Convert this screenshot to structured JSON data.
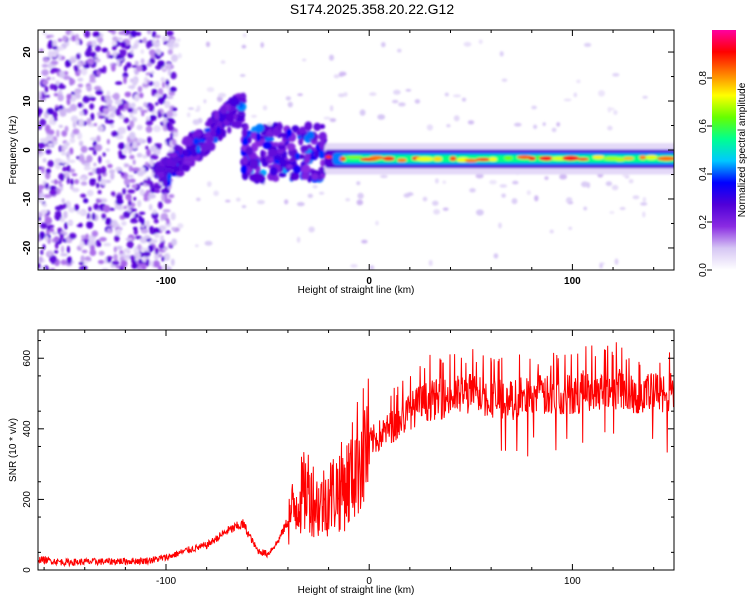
{
  "title": "S174.2025.358.20.22.G12",
  "chart_data": [
    {
      "type": "heatmap",
      "name": "spectrogram",
      "xlabel": "Height of straight line (km)",
      "ylabel": "Frequency (Hz)",
      "xlim": [
        -163,
        150
      ],
      "ylim": [
        -24.5,
        24.5
      ],
      "x_ticks": [
        -100,
        0,
        100
      ],
      "y_ticks": [
        -20,
        -10,
        0,
        10,
        20
      ],
      "x_tick_labels": [
        "-100",
        "0",
        "100"
      ],
      "y_tick_labels": [
        "-20",
        "-10",
        "0",
        "10",
        "20"
      ],
      "colorbar": {
        "label": "Normalized spectral amplitude",
        "range": [
          0,
          1
        ],
        "ticks": [
          0.0,
          0.2,
          0.4,
          0.6,
          0.8
        ],
        "tick_labels": [
          "0.0",
          "0.2",
          "0.4",
          "0.6",
          "0.8"
        ],
        "colors": [
          "#ffffff",
          "#d6c6f4",
          "#8a2be2",
          "#5000d8",
          "#0000ff",
          "#00c8ff",
          "#00ff90",
          "#66ff00",
          "#ffff00",
          "#ff8000",
          "#ff0000",
          "#ff00a0"
        ]
      },
      "features": [
        {
          "x_from": -163,
          "x_to": -105,
          "description": "scattered noise",
          "amplitude": 0.05
        },
        {
          "x_from": -105,
          "x_to": -62,
          "freq_from": -6,
          "freq_to": 9,
          "amplitude": 0.25
        },
        {
          "x_from": -62,
          "x_to": -22,
          "freq_from": -6,
          "freq_to": 5,
          "amplitude": 0.3
        },
        {
          "x_from": -22,
          "x_to": 150,
          "freq_center": -1.8,
          "amplitude": 0.9
        }
      ]
    },
    {
      "type": "line",
      "name": "snr",
      "xlabel": "Height of straight line (km)",
      "ylabel": "SNR (10 * v/v)",
      "xlim": [
        -163,
        150
      ],
      "ylim": [
        0,
        680
      ],
      "x_ticks": [
        -100,
        0,
        100
      ],
      "y_ticks": [
        0,
        200,
        400,
        600
      ],
      "x_tick_labels": [
        "-100",
        "0",
        "100"
      ],
      "y_tick_labels": [
        "0",
        "200",
        "400",
        "600"
      ],
      "color": "#ff0000",
      "series": [
        {
          "name": "SNR",
          "x": [
            -163,
            -150,
            -130,
            -110,
            -100,
            -90,
            -80,
            -70,
            -62,
            -55,
            -50,
            -45,
            -40,
            -35,
            -30,
            -25,
            -20,
            -15,
            -10,
            -5,
            0,
            5,
            10,
            15,
            20,
            25,
            30,
            40,
            50,
            60,
            70,
            80,
            90,
            100,
            110,
            120,
            130,
            140,
            150
          ],
          "values": [
            30,
            22,
            24,
            26,
            35,
            55,
            70,
            110,
            130,
            55,
            45,
            80,
            140,
            200,
            230,
            180,
            210,
            230,
            250,
            330,
            360,
            380,
            400,
            420,
            450,
            470,
            480,
            490,
            500,
            490,
            480,
            500,
            490,
            500,
            510,
            520,
            500,
            500,
            505
          ]
        }
      ]
    }
  ]
}
